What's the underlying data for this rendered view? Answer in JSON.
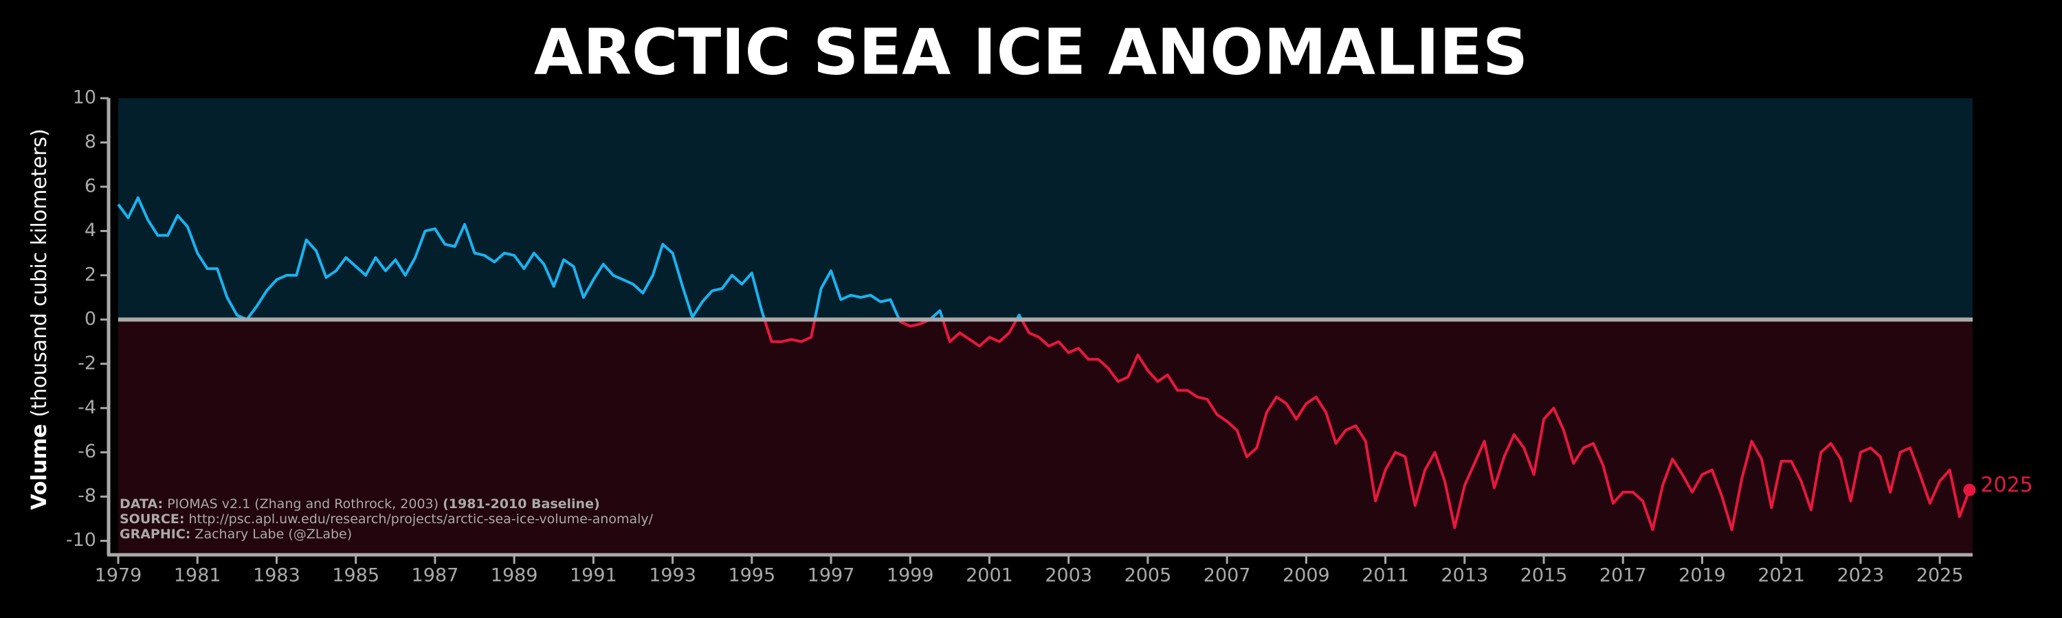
{
  "chart_data": {
    "type": "line",
    "title": "ARCTIC SEA ICE ANOMALIES",
    "y_label": {
      "bold": "Volume",
      "rest": "(thousand cubic kilometers)"
    },
    "end_label": "2025",
    "credits": [
      {
        "label": "DATA:",
        "text": "PIOMAS v2.1 (Zhang and Rothrock, 2003)",
        "note": "(1981-2010 Baseline)"
      },
      {
        "label": "SOURCE:",
        "text": "http://psc.apl.uw.edu/research/projects/arctic-sea-ice-volume-anomaly/"
      },
      {
        "label": "GRAPHIC:",
        "text": "Zachary Labe (@ZLabe)"
      }
    ],
    "positive_color": "#1ab2f0",
    "negative_color": "#e8173f",
    "positive_background": "#021f2b",
    "negative_background": "#22050d",
    "xlim": [
      1979,
      2025.83
    ],
    "xticks": [
      1979,
      1981,
      1983,
      1985,
      1987,
      1989,
      1991,
      1993,
      1995,
      1997,
      1999,
      2001,
      2003,
      2005,
      2007,
      2009,
      2011,
      2013,
      2015,
      2017,
      2019,
      2021,
      2023,
      2025
    ],
    "ylim": [
      -10.6,
      10
    ],
    "yticks": [
      -10,
      -8,
      -6,
      -4,
      -2,
      0,
      2,
      4,
      6,
      8,
      10
    ],
    "x": [
      1979,
      1979.25,
      1979.5,
      1979.75,
      1980,
      1980.25,
      1980.5,
      1980.75,
      1981,
      1981.25,
      1981.5,
      1981.75,
      1982,
      1982.25,
      1982.5,
      1982.75,
      1983,
      1983.25,
      1983.5,
      1983.75,
      1984,
      1984.25,
      1984.5,
      1984.75,
      1985,
      1985.25,
      1985.5,
      1985.75,
      1986,
      1986.25,
      1986.5,
      1986.75,
      1987,
      1987.25,
      1987.5,
      1987.75,
      1988,
      1988.25,
      1988.5,
      1988.75,
      1989,
      1989.25,
      1989.5,
      1989.75,
      1990,
      1990.25,
      1990.5,
      1990.75,
      1991,
      1991.25,
      1991.5,
      1991.75,
      1992,
      1992.25,
      1992.5,
      1992.75,
      1993,
      1993.25,
      1993.5,
      1993.75,
      1994,
      1994.25,
      1994.5,
      1994.75,
      1995,
      1995.25,
      1995.5,
      1995.75,
      1996,
      1996.25,
      1996.5,
      1996.75,
      1997,
      1997.25,
      1997.5,
      1997.75,
      1998,
      1998.25,
      1998.5,
      1998.75,
      1999,
      1999.25,
      1999.5,
      1999.75,
      2000,
      2000.25,
      2000.5,
      2000.75,
      2001,
      2001.25,
      2001.5,
      2001.75,
      2002,
      2002.25,
      2002.5,
      2002.75,
      2003,
      2003.25,
      2003.5,
      2003.75,
      2004,
      2004.25,
      2004.5,
      2004.75,
      2005,
      2005.25,
      2005.5,
      2005.75,
      2006,
      2006.25,
      2006.5,
      2006.75,
      2007,
      2007.25,
      2007.5,
      2007.75,
      2008,
      2008.25,
      2008.5,
      2008.75,
      2009,
      2009.25,
      2009.5,
      2009.75,
      2010,
      2010.25,
      2010.5,
      2010.75,
      2011,
      2011.25,
      2011.5,
      2011.75,
      2012,
      2012.25,
      2012.5,
      2012.75,
      2013,
      2013.25,
      2013.5,
      2013.75,
      2014,
      2014.25,
      2014.5,
      2014.75,
      2015,
      2015.25,
      2015.5,
      2015.75,
      2016,
      2016.25,
      2016.5,
      2016.75,
      2017,
      2017.25,
      2017.5,
      2017.75,
      2018,
      2018.25,
      2018.5,
      2018.75,
      2019,
      2019.25,
      2019.5,
      2019.75,
      2020,
      2020.25,
      2020.5,
      2020.75,
      2021,
      2021.25,
      2021.5,
      2021.75,
      2022,
      2022.25,
      2022.5,
      2022.75,
      2023,
      2023.25,
      2023.5,
      2023.75,
      2024,
      2024.25,
      2024.5,
      2024.75,
      2025,
      2025.25,
      2025.5,
      2025.75
    ],
    "values": [
      5.2,
      4.6,
      5.5,
      4.5,
      3.8,
      3.8,
      4.7,
      4.2,
      3.0,
      2.3,
      2.3,
      1.0,
      0.2,
      0.0,
      0.6,
      1.3,
      1.8,
      2.0,
      2.0,
      3.6,
      3.1,
      1.9,
      2.2,
      2.8,
      2.4,
      2.0,
      2.8,
      2.2,
      2.7,
      2.0,
      2.8,
      4.0,
      4.1,
      3.4,
      3.3,
      4.3,
      3.0,
      2.9,
      2.6,
      3.0,
      2.9,
      2.3,
      3.0,
      2.5,
      1.5,
      2.7,
      2.4,
      1.0,
      1.8,
      2.5,
      2.0,
      1.8,
      1.6,
      1.2,
      2.0,
      3.4,
      3.0,
      1.5,
      0.1,
      0.8,
      1.3,
      1.4,
      2.0,
      1.6,
      2.1,
      0.4,
      -1.0,
      -1.0,
      -0.9,
      -1.0,
      -0.8,
      1.4,
      2.2,
      0.9,
      1.1,
      1.0,
      1.1,
      0.8,
      0.9,
      -0.1,
      -0.3,
      -0.2,
      0.0,
      0.4,
      -1.0,
      -0.6,
      -0.9,
      -1.2,
      -0.8,
      -1.0,
      -0.6,
      0.2,
      -0.6,
      -0.8,
      -1.2,
      -1.0,
      -1.5,
      -1.3,
      -1.8,
      -1.8,
      -2.2,
      -2.8,
      -2.6,
      -1.6,
      -2.3,
      -2.8,
      -2.5,
      -3.2,
      -3.2,
      -3.5,
      -3.6,
      -4.3,
      -4.6,
      -5.0,
      -6.2,
      -5.8,
      -4.2,
      -3.5,
      -3.8,
      -4.5,
      -3.8,
      -3.5,
      -4.2,
      -5.6,
      -5.0,
      -4.8,
      -5.5,
      -8.2,
      -6.8,
      -6.0,
      -6.2,
      -8.4,
      -6.8,
      -6.0,
      -7.3,
      -9.4,
      -7.5,
      -6.5,
      -5.5,
      -7.6,
      -6.2,
      -5.2,
      -5.8,
      -7.0,
      -4.5,
      -4.0,
      -5.0,
      -6.5,
      -5.8,
      -5.6,
      -6.6,
      -8.3,
      -7.8,
      -7.8,
      -8.2,
      -9.5,
      -7.5,
      -6.3,
      -7.0,
      -7.8,
      -7.0,
      -6.8,
      -8.0,
      -9.5,
      -7.2,
      -5.5,
      -6.3,
      -8.5,
      -6.4,
      -6.4,
      -7.3,
      -8.6,
      -6.0,
      -5.6,
      -6.3,
      -8.2,
      -6.0,
      -5.8,
      -6.2,
      -7.8,
      -6.0,
      -5.8,
      -7.0,
      -8.3,
      -7.3,
      -6.8,
      -8.9,
      -7.7
    ]
  }
}
